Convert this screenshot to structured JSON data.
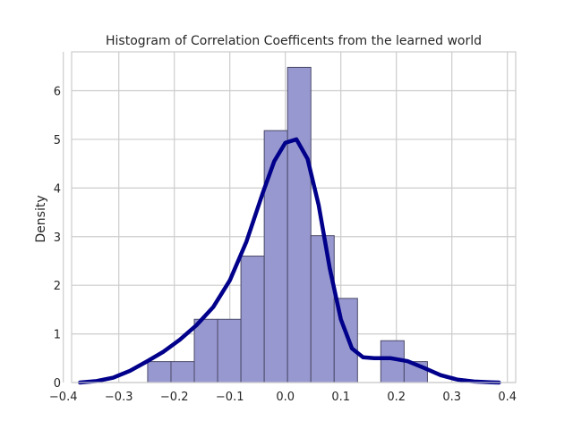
{
  "chart_data": {
    "type": "bar",
    "title": "Histogram of Correlation Coefficents from the learned world",
    "xlabel": "",
    "ylabel": "Density",
    "xlim": [
      -0.385,
      0.415
    ],
    "ylim": [
      0,
      6.8
    ],
    "grid": true,
    "xticks": [
      -0.4,
      -0.3,
      -0.2,
      -0.1,
      0.0,
      0.1,
      0.2,
      0.3,
      0.4
    ],
    "xtick_labels": [
      "−0.4",
      "−0.3",
      "−0.2",
      "−0.1",
      "0.0",
      "0.1",
      "0.2",
      "0.3",
      "0.4"
    ],
    "yticks": [
      0,
      1,
      2,
      3,
      4,
      5,
      6
    ],
    "ytick_labels": [
      "0",
      "1",
      "2",
      "3",
      "4",
      "5",
      "6"
    ],
    "bin_edges": [
      -0.248,
      -0.206,
      -0.164,
      -0.122,
      -0.08,
      -0.038,
      0.004,
      0.046,
      0.088,
      0.13,
      0.172,
      0.214,
      0.256
    ],
    "bin_values": [
      0.43,
      0.43,
      1.3,
      1.3,
      2.6,
      5.18,
      6.48,
      3.02,
      1.73,
      0.0,
      0.86,
      0.43
    ],
    "bar_color": "#9898d0",
    "bar_edge_color": "#4a4a6a",
    "kde": {
      "color": "#00008b",
      "x": [
        -0.37,
        -0.34,
        -0.31,
        -0.28,
        -0.25,
        -0.22,
        -0.19,
        -0.16,
        -0.13,
        -0.1,
        -0.07,
        -0.04,
        -0.02,
        0.0,
        0.02,
        0.04,
        0.06,
        0.08,
        0.1,
        0.12,
        0.14,
        0.16,
        0.19,
        0.22,
        0.25,
        0.28,
        0.31,
        0.34,
        0.37,
        0.385
      ],
      "y": [
        0.0,
        0.03,
        0.1,
        0.24,
        0.43,
        0.63,
        0.88,
        1.18,
        1.55,
        2.1,
        2.9,
        3.92,
        4.55,
        4.93,
        5.0,
        4.6,
        3.65,
        2.35,
        1.3,
        0.7,
        0.52,
        0.5,
        0.5,
        0.44,
        0.3,
        0.15,
        0.06,
        0.02,
        0.005,
        0.0
      ]
    }
  }
}
